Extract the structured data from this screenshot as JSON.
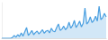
{
  "chart_data": {
    "type": "area",
    "x": [
      0,
      1,
      2,
      3,
      4,
      5,
      6,
      7,
      8,
      9,
      10,
      11,
      12,
      13,
      14,
      15,
      16,
      17,
      18,
      19,
      20,
      21,
      22,
      23,
      24,
      25,
      26,
      27,
      28,
      29,
      30,
      31,
      32,
      33,
      34,
      35,
      36,
      37,
      38,
      39,
      40,
      41,
      42,
      43,
      44,
      45,
      46,
      47,
      48,
      49,
      50,
      51,
      52,
      53,
      54,
      55,
      56,
      57,
      58,
      59
    ],
    "values": [
      0,
      0,
      0,
      0,
      0,
      0,
      2,
      8,
      3,
      10,
      5,
      15,
      6,
      18,
      30,
      8,
      14,
      22,
      10,
      16,
      20,
      12,
      18,
      24,
      14,
      20,
      22,
      15,
      28,
      20,
      18,
      30,
      40,
      22,
      26,
      34,
      24,
      30,
      45,
      28,
      36,
      50,
      30,
      38,
      48,
      32,
      42,
      85,
      40,
      46,
      60,
      44,
      50,
      62,
      48,
      90,
      52,
      58,
      70,
      60
    ],
    "color": "#4a9fe0",
    "xlim": [
      0,
      59
    ],
    "ylim": [
      0,
      100
    ],
    "grid": false,
    "tick_labels": false
  }
}
